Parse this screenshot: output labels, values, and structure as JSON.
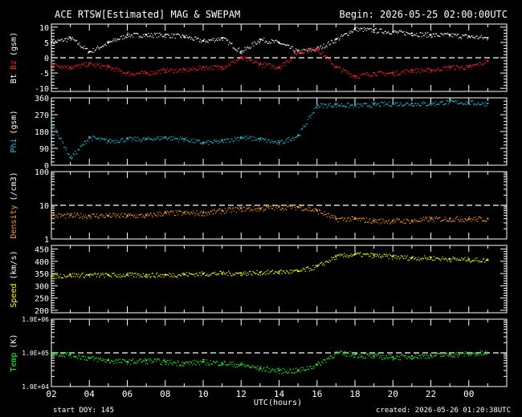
{
  "header": {
    "title": "ACE RTSW[Estimated] MAG & SWEPAM",
    "begin": "Begin: 2026-05-25 02:00:00UTC"
  },
  "footer": {
    "start_doy": "start DOY: 145",
    "created": "created: 2026-05-26 01:20:38UTC"
  },
  "colors": {
    "bt": "#ffffff",
    "bz": "#ff2020",
    "phi": "#20c0e0",
    "density": "#ff9a20",
    "speed": "#ffff00",
    "temp": "#20ff20",
    "axes": "#ffffff"
  },
  "chart_data": [
    {
      "type": "scatter",
      "panel": "mag",
      "ylabel_parts": [
        "Bt",
        "Bz",
        "(gsm)"
      ],
      "yticks": [
        -10,
        -5,
        0,
        5,
        10
      ],
      "ylim": [
        -11,
        11
      ],
      "reference_line": 0,
      "x": [
        0,
        1,
        2,
        3,
        4,
        5,
        6,
        7,
        8,
        9,
        10,
        11,
        12,
        13,
        14,
        15,
        16,
        17,
        18,
        19,
        20,
        21,
        22,
        23
      ],
      "series": [
        {
          "name": "Bt",
          "values": [
            5,
            6.5,
            2,
            5,
            7.5,
            7.5,
            7.5,
            7,
            5.5,
            6.5,
            2,
            6,
            5,
            2,
            3,
            6,
            9.5,
            9,
            8.5,
            8,
            7.5,
            7.5,
            7,
            6.5
          ]
        },
        {
          "name": "Bz",
          "values": [
            -2,
            -3,
            -2,
            -3,
            -5,
            -5,
            -4,
            -4,
            -3,
            -3,
            0,
            -2,
            -3,
            2,
            3,
            -3,
            -6,
            -5,
            -5,
            -4,
            -4,
            -3,
            -3,
            -1
          ]
        }
      ]
    },
    {
      "type": "scatter",
      "panel": "phi",
      "ylabel_parts": [
        "Phi",
        "(gsm)"
      ],
      "yticks": [
        0,
        90,
        180,
        270,
        360
      ],
      "ylim": [
        0,
        360
      ],
      "x": [
        0,
        1,
        2,
        3,
        4,
        5,
        6,
        7,
        8,
        9,
        10,
        11,
        12,
        13,
        14,
        15,
        16,
        17,
        18,
        19,
        20,
        21,
        22,
        23
      ],
      "series": [
        {
          "name": "Phi",
          "values": [
            230,
            40,
            150,
            130,
            140,
            140,
            150,
            140,
            120,
            130,
            150,
            140,
            120,
            160,
            320,
            325,
            320,
            325,
            330,
            330,
            330,
            340,
            335,
            330
          ]
        }
      ]
    },
    {
      "type": "scatter",
      "panel": "density",
      "ylabel_parts": [
        "Density",
        "(/cm3)"
      ],
      "yscale": "log",
      "yticks": [
        1,
        10,
        100
      ],
      "ylim": [
        1,
        100
      ],
      "reference_line": 10,
      "x": [
        0,
        1,
        2,
        3,
        4,
        5,
        6,
        7,
        8,
        9,
        10,
        11,
        12,
        13,
        14,
        15,
        16,
        17,
        18,
        19,
        20,
        21,
        22,
        23
      ],
      "series": [
        {
          "name": "Density",
          "values": [
            5,
            5,
            5,
            5,
            5,
            5,
            6,
            6,
            6,
            7,
            8,
            8,
            9,
            9,
            7,
            4,
            4,
            3.5,
            3.5,
            3.5,
            4,
            4,
            4,
            4
          ]
        }
      ]
    },
    {
      "type": "scatter",
      "panel": "speed",
      "ylabel_parts": [
        "Speed",
        "(km/s)"
      ],
      "yticks": [
        200,
        250,
        300,
        350,
        400,
        450
      ],
      "ylim": [
        190,
        465
      ],
      "x": [
        0,
        1,
        2,
        3,
        4,
        5,
        6,
        7,
        8,
        9,
        10,
        11,
        12,
        13,
        14,
        15,
        16,
        17,
        18,
        19,
        20,
        21,
        22,
        23
      ],
      "series": [
        {
          "name": "Speed",
          "values": [
            340,
            345,
            345,
            345,
            345,
            345,
            345,
            348,
            350,
            352,
            352,
            355,
            358,
            360,
            380,
            420,
            430,
            425,
            420,
            415,
            415,
            410,
            408,
            405
          ]
        }
      ]
    },
    {
      "type": "scatter",
      "panel": "temp",
      "ylabel_parts": [
        "Temp",
        "(K)"
      ],
      "yscale": "log",
      "ytick_labels": [
        "1.0E+04",
        "1.0E+05",
        "1.0E+06"
      ],
      "ylim": [
        10000,
        1000000
      ],
      "reference_line": 100000,
      "x": [
        0,
        1,
        2,
        3,
        4,
        5,
        6,
        7,
        8,
        9,
        10,
        11,
        12,
        13,
        14,
        15,
        16,
        17,
        18,
        19,
        20,
        21,
        22,
        23
      ],
      "series": [
        {
          "name": "Temp",
          "values": [
            100000,
            90000,
            70000,
            60000,
            55000,
            60000,
            55000,
            50000,
            55000,
            50000,
            45000,
            35000,
            30000,
            30000,
            45000,
            100000,
            90000,
            80000,
            75000,
            80000,
            85000,
            90000,
            95000,
            100000
          ]
        }
      ]
    }
  ],
  "x_axis": {
    "tick_labels": [
      "02",
      "04",
      "06",
      "08",
      "10",
      "12",
      "14",
      "16",
      "18",
      "20",
      "22",
      "00"
    ],
    "label": "UTC(hours)"
  }
}
